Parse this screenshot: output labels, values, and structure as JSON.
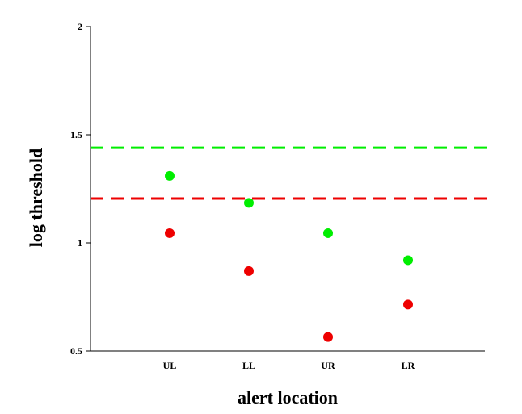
{
  "chart_data": {
    "type": "scatter",
    "title": "",
    "xlabel": "alert location",
    "ylabel": "log threshold",
    "categories": [
      "UL",
      "LL",
      "UR",
      "LR"
    ],
    "ylim": [
      0.5,
      2
    ],
    "yticks": [
      "0.5",
      "1",
      "1.5",
      "2"
    ],
    "grid": false,
    "series": [
      {
        "color": "#00ee00",
        "values": [
          1.31,
          1.185,
          1.045,
          0.92
        ]
      },
      {
        "color": "#ee0000",
        "values": [
          1.045,
          0.87,
          0.565,
          0.715
        ]
      }
    ],
    "reference_lines": [
      {
        "y": 1.44,
        "color": "#00ee00",
        "style": "dashed"
      },
      {
        "y": 1.205,
        "color": "#ee0000",
        "style": "dashed"
      }
    ]
  }
}
